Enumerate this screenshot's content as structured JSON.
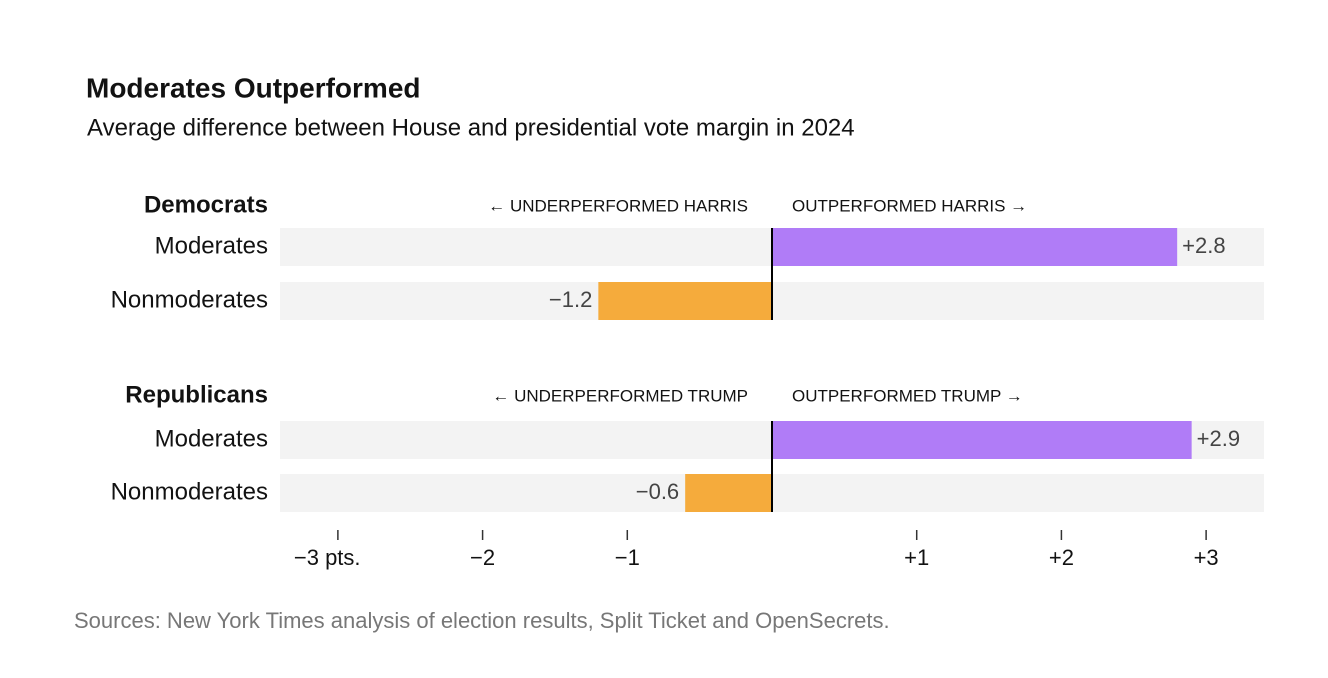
{
  "header": {
    "title": "Moderates Outperformed",
    "subtitle": "Average difference between House and presidential vote margin in 2024"
  },
  "chart_data": [
    {
      "type": "bar",
      "orientation": "horizontal",
      "group": "Democrats",
      "annotation_left": "← UNDERPERFORMED HARRIS",
      "annotation_right": "OUTPERFORMED HARRIS →",
      "categories": [
        "Moderates",
        "Nonmoderates"
      ],
      "values": [
        2.8,
        -1.2
      ],
      "value_labels": [
        "+2.8",
        "−1.2"
      ],
      "colors": [
        "#b07cf7",
        "#f5ab3c"
      ],
      "xlim": [
        -3.4,
        3.4
      ]
    },
    {
      "type": "bar",
      "orientation": "horizontal",
      "group": "Republicans",
      "annotation_left": "← UNDERPERFORMED TRUMP",
      "annotation_right": "OUTPERFORMED TRUMP →",
      "categories": [
        "Moderates",
        "Nonmoderates"
      ],
      "values": [
        2.9,
        -0.6
      ],
      "value_labels": [
        "+2.9",
        "−0.6"
      ],
      "colors": [
        "#b07cf7",
        "#f5ab3c"
      ],
      "xlim": [
        -3.4,
        3.4
      ],
      "xticks": [
        {
          "value": -3,
          "label": "−3 pts."
        },
        {
          "value": -2,
          "label": "−2"
        },
        {
          "value": -1,
          "label": "−1"
        },
        {
          "value": 1,
          "label": "+1"
        },
        {
          "value": 2,
          "label": "+2"
        },
        {
          "value": 3,
          "label": "+3"
        }
      ]
    }
  ],
  "source": "Sources: New York Times analysis of election results, Split Ticket and OpenSecrets."
}
